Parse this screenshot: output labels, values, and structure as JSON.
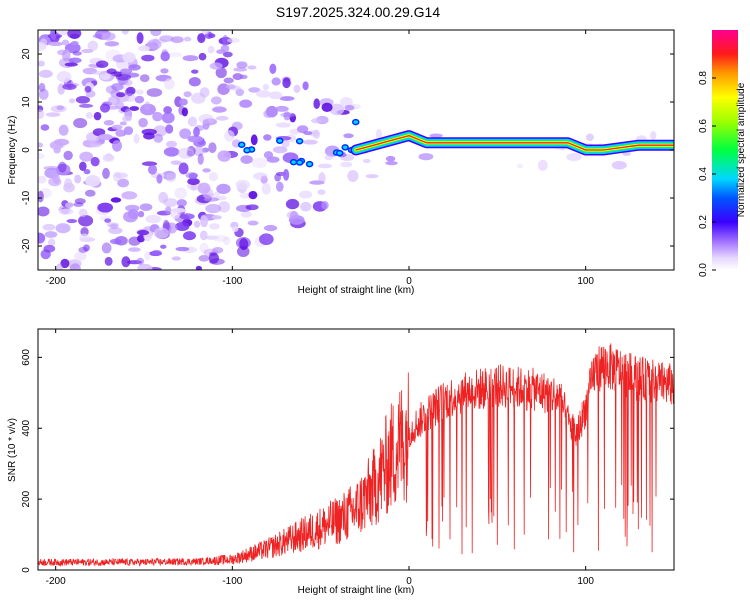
{
  "chart_data": [
    {
      "type": "heatmap",
      "title": "S197.2025.324.00.29.G14",
      "xlabel": "Height of straight line (km)",
      "ylabel": "Frequency (Hz)",
      "xlim": [
        -210,
        150
      ],
      "ylim": [
        -25,
        25
      ],
      "xticks": [
        -200,
        -100,
        0,
        100
      ],
      "yticks": [
        -20,
        -10,
        0,
        10,
        20
      ],
      "colorbar": {
        "label": "Normalized spectral amplitude",
        "range": [
          0.0,
          1.0
        ],
        "ticks": [
          0.0,
          0.2,
          0.4,
          0.6,
          0.8
        ]
      },
      "tone_trace": [
        {
          "x": -30,
          "y": 0
        },
        {
          "x": -20,
          "y": 1
        },
        {
          "x": -10,
          "y": 2
        },
        {
          "x": 0,
          "y": 3
        },
        {
          "x": 10,
          "y": 1.5
        },
        {
          "x": 50,
          "y": 1.5
        },
        {
          "x": 90,
          "y": 1.5
        },
        {
          "x": 100,
          "y": 0
        },
        {
          "x": 110,
          "y": 0
        },
        {
          "x": 120,
          "y": 0.5
        },
        {
          "x": 130,
          "y": 1
        },
        {
          "x": 150,
          "y": 1
        }
      ]
    },
    {
      "type": "line",
      "xlabel": "Height of straight line (km)",
      "ylabel": "SNR (10 * v/v)",
      "xlim": [
        -210,
        150
      ],
      "ylim": [
        0,
        680
      ],
      "xticks": [
        -200,
        -100,
        0,
        100
      ],
      "yticks": [
        0,
        200,
        400,
        600
      ],
      "series": [
        {
          "name": "SNR",
          "color": "#ee2222",
          "x": [
            -210,
            -180,
            -150,
            -120,
            -100,
            -80,
            -60,
            -40,
            -30,
            -20,
            -10,
            0,
            10,
            20,
            30,
            50,
            70,
            85,
            90,
            95,
            100,
            105,
            110,
            120,
            130,
            150
          ],
          "y": [
            22,
            22,
            22,
            24,
            30,
            60,
            100,
            140,
            170,
            230,
            320,
            390,
            440,
            480,
            500,
            520,
            510,
            490,
            420,
            380,
            460,
            560,
            580,
            560,
            540,
            520
          ]
        }
      ]
    }
  ]
}
